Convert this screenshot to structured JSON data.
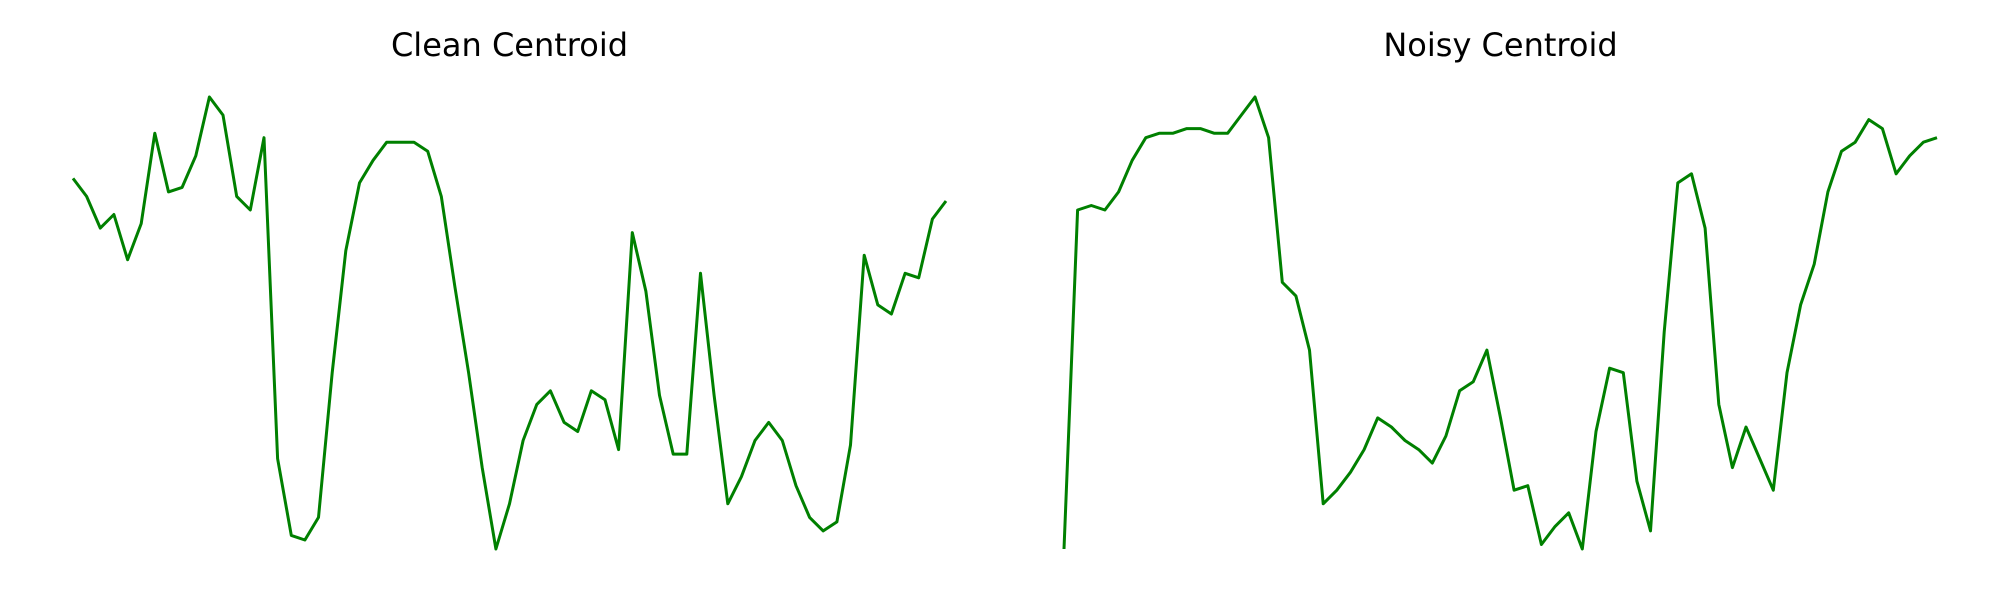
{
  "chart_data": [
    {
      "type": "line",
      "title": "Clean Centroid",
      "color": "#008000",
      "ylim": [
        0,
        100
      ],
      "values": [
        82,
        78,
        71,
        74,
        64,
        72,
        92,
        79,
        80,
        87,
        100,
        96,
        78,
        75,
        91,
        20,
        3,
        2,
        7,
        39,
        66,
        81,
        86,
        90,
        90,
        90,
        88,
        78,
        58,
        39,
        18,
        0,
        10,
        24,
        32,
        35,
        28,
        26,
        35,
        33,
        22,
        70,
        57,
        34,
        21,
        21,
        61,
        34,
        10,
        16,
        24,
        28,
        24,
        14,
        7,
        4,
        6,
        23,
        65,
        54,
        52,
        61,
        60,
        73,
        77
      ]
    },
    {
      "type": "line",
      "title": "Noisy Centroid",
      "color": "#008000",
      "ylim": [
        0,
        100
      ],
      "values": [
        0,
        75,
        76,
        75,
        79,
        86,
        91,
        92,
        92,
        93,
        93,
        92,
        92,
        96,
        100,
        91,
        59,
        56,
        44,
        10,
        13,
        17,
        22,
        29,
        27,
        24,
        22,
        19,
        25,
        35,
        37,
        44,
        29,
        13,
        14,
        1,
        5,
        8,
        0,
        26,
        40,
        39,
        15,
        4,
        48,
        81,
        83,
        71,
        32,
        18,
        27,
        20,
        13,
        39,
        54,
        63,
        79,
        88,
        90,
        95,
        93,
        83,
        87,
        90,
        91
      ]
    }
  ]
}
